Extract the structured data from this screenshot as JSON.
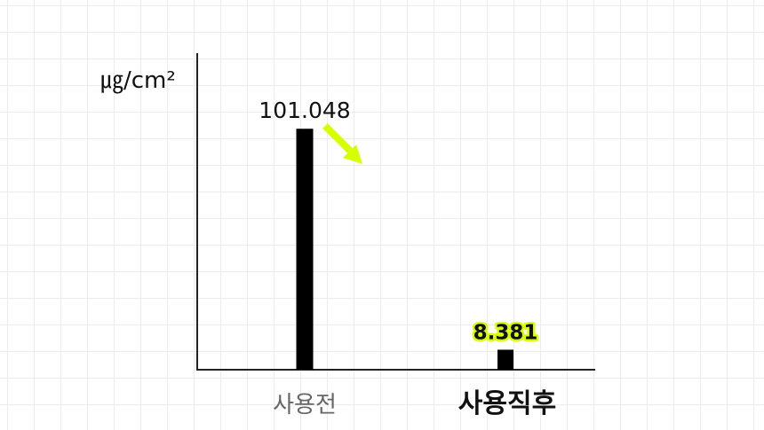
{
  "chart_data": {
    "type": "bar",
    "ylabel": "㎍/cm²",
    "categories": [
      "사용전",
      "사용직후"
    ],
    "values": [
      101.048,
      8.381
    ],
    "data_labels": [
      "101.048",
      "8.381"
    ],
    "ylim": [
      0,
      116
    ],
    "grid": false,
    "colors": {
      "bar": "#000000",
      "highlight": "#d8ff00",
      "axis": "#222222"
    },
    "annotations": [
      {
        "type": "arrow",
        "direction": "down-right",
        "color": "#d8ff00"
      }
    ]
  }
}
